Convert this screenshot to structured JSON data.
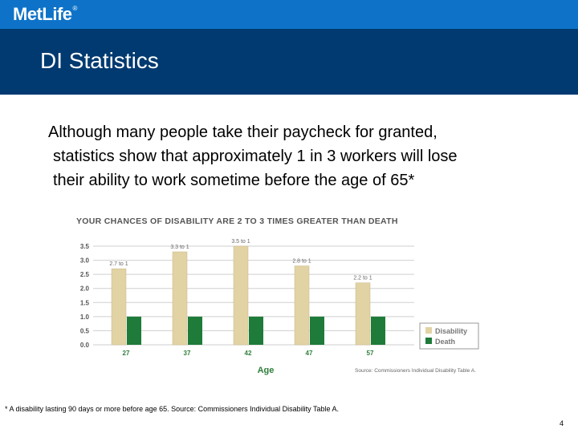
{
  "header": {
    "logo": "MetLife",
    "logo_mark": "®",
    "title": "DI Statistics"
  },
  "body": {
    "lines": [
      "Although many people take their paycheck for granted,",
      "statistics show that approximately 1 in 3 workers will lose",
      "their ability to work sometime before the age of 65*"
    ]
  },
  "chart_data": {
    "type": "bar",
    "title": "YOUR CHANCES OF DISABILITY ARE 2 TO 3 TIMES GREATER THAN DEATH",
    "xlabel": "Age",
    "ylabel": "",
    "categories": [
      "27",
      "37",
      "42",
      "47",
      "57"
    ],
    "yticks": [
      "0.0",
      "0.5",
      "1.0",
      "1.5",
      "2.0",
      "2.5",
      "3.0",
      "3.5"
    ],
    "ylim": [
      0,
      3.5
    ],
    "series": [
      {
        "name": "Disability",
        "values": [
          2.7,
          3.3,
          3.5,
          2.8,
          2.2
        ],
        "color": "#e2d3a4"
      },
      {
        "name": "Death",
        "values": [
          1.0,
          1.0,
          1.0,
          1.0,
          1.0
        ],
        "color": "#1e7b3a"
      }
    ],
    "data_labels": [
      "2.7 to 1",
      "3.3 to 1",
      "3.5 to 1",
      "2.8 to 1",
      "2.2 to 1"
    ],
    "legend": "right",
    "grid": true,
    "source": "Source: Commissioners Individual Disability Table A."
  },
  "footer": {
    "footnote": "* A disability lasting 90 days or more before age 65.  Source: Commissioners Individual Disability Table A.",
    "page": "4"
  }
}
